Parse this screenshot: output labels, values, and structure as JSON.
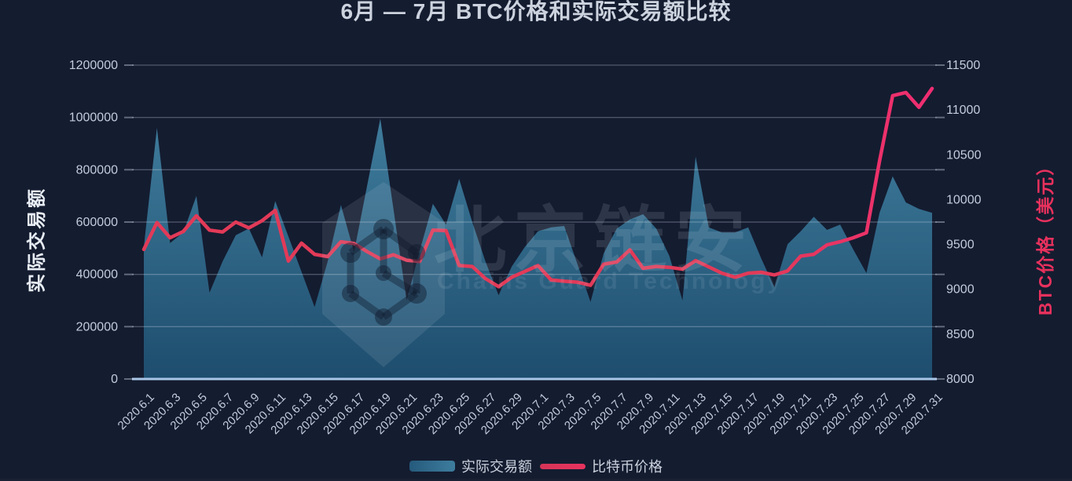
{
  "page": {
    "title": "6月 — 7月 BTC价格和实际交易额比较"
  },
  "watermark": {
    "brand": "北京链安",
    "subtitle": "Chains Guard Technology",
    "logo": "hexagon-network-shield"
  },
  "legend": [
    {
      "label": "实际交易额",
      "type": "area"
    },
    {
      "label": "比特币价格",
      "type": "line"
    }
  ],
  "colors": {
    "background": "#141c30",
    "area_top": "#3f7c9c",
    "area_bottom": "#1e4d6e",
    "line_start": "#e23a58",
    "line_end": "#f02d72",
    "grid": "rgba(205,216,232,0.42)",
    "axis_line": "#a9c7e8",
    "tick_text": "#c2cddc"
  },
  "chart_data": {
    "type": "combo",
    "title": "6月 — 7月 BTC价格和实际交易额比较",
    "x": [
      "2020.6.1",
      "2020.6.2",
      "2020.6.3",
      "2020.6.4",
      "2020.6.5",
      "2020.6.6",
      "2020.6.7",
      "2020.6.8",
      "2020.6.9",
      "2020.6.10",
      "2020.6.11",
      "2020.6.12",
      "2020.6.13",
      "2020.6.14",
      "2020.6.15",
      "2020.6.16",
      "2020.6.17",
      "2020.6.18",
      "2020.6.19",
      "2020.6.20",
      "2020.6.21",
      "2020.6.22",
      "2020.6.23",
      "2020.6.24",
      "2020.6.25",
      "2020.6.26",
      "2020.6.27",
      "2020.6.28",
      "2020.6.29",
      "2020.6.30",
      "2020.7.1",
      "2020.7.2",
      "2020.7.3",
      "2020.7.4",
      "2020.7.5",
      "2020.7.6",
      "2020.7.7",
      "2020.7.8",
      "2020.7.9",
      "2020.7.10",
      "2020.7.11",
      "2020.7.12",
      "2020.7.13",
      "2020.7.14",
      "2020.7.15",
      "2020.7.16",
      "2020.7.17",
      "2020.7.18",
      "2020.7.19",
      "2020.7.20",
      "2020.7.21",
      "2020.7.22",
      "2020.7.23",
      "2020.7.24",
      "2020.7.25",
      "2020.7.26",
      "2020.7.27",
      "2020.7.28",
      "2020.7.29",
      "2020.7.30",
      "2020.7.31"
    ],
    "x_tick_step": 2,
    "series": [
      {
        "name": "实际交易额",
        "type": "area",
        "y_axis": "left",
        "values": [
          505000,
          960000,
          520000,
          560000,
          700000,
          330000,
          450000,
          550000,
          575000,
          465000,
          680000,
          545000,
          410000,
          275000,
          450000,
          665000,
          485000,
          740000,
          995000,
          650000,
          300000,
          490000,
          670000,
          590000,
          765000,
          600000,
          450000,
          320000,
          430000,
          505000,
          565000,
          580000,
          585000,
          440000,
          295000,
          480000,
          575000,
          610000,
          630000,
          575000,
          470000,
          300000,
          850000,
          580000,
          560000,
          560000,
          580000,
          460000,
          350000,
          515000,
          565000,
          620000,
          570000,
          590000,
          495000,
          405000,
          635000,
          775000,
          675000,
          650000,
          635000
        ]
      },
      {
        "name": "比特币价格",
        "type": "line",
        "y_axis": "right",
        "values": [
          9445,
          9745,
          9575,
          9645,
          9820,
          9660,
          9640,
          9750,
          9685,
          9765,
          9880,
          9315,
          9515,
          9390,
          9365,
          9530,
          9510,
          9420,
          9340,
          9385,
          9325,
          9310,
          9660,
          9655,
          9265,
          9255,
          9120,
          9030,
          9135,
          9200,
          9265,
          9105,
          9090,
          9080,
          9045,
          9280,
          9305,
          9440,
          9235,
          9255,
          9245,
          9225,
          9320,
          9250,
          9180,
          9135,
          9180,
          9190,
          9160,
          9205,
          9370,
          9390,
          9495,
          9530,
          9575,
          9630,
          10430,
          11160,
          11195,
          11030,
          11240
        ]
      }
    ],
    "axes": {
      "left": {
        "label": "实际交易额",
        "min": 0,
        "max": 1200000,
        "tick_interval": 200000,
        "ticks": [
          0,
          200000,
          400000,
          600000,
          800000,
          1000000,
          1200000
        ]
      },
      "right": {
        "label": "BTC价格（美元）",
        "min": 8000,
        "max": 11500,
        "tick_interval": 500,
        "ticks": [
          8000,
          8500,
          9000,
          9500,
          10000,
          10500,
          11000,
          11500
        ]
      }
    },
    "grid": true,
    "legend_position": "bottom"
  }
}
